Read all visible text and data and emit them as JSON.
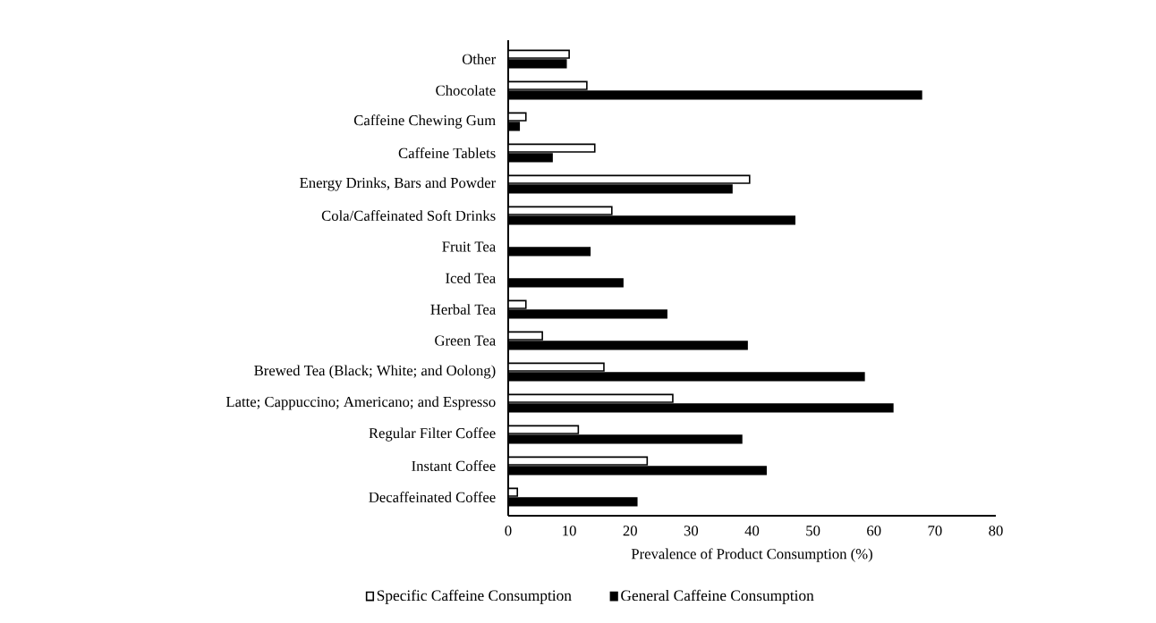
{
  "chart_data": {
    "type": "bar",
    "orientation": "horizontal",
    "xlabel": "Prevalence  of Product Consumption  (%)",
    "categories": [
      "Other",
      "Chocolate",
      "Caffeine Chewing Gum",
      "Caffeine Tablets",
      "Energy Drinks, Bars and Powder",
      "Cola/Caffeinated Soft Drinks",
      "Fruit Tea",
      "Iced Tea",
      "Herbal Tea",
      "Green Tea",
      "Brewed Tea (Black; White; and Oolong)",
      "Latte; Cappuccino; Americano; and Espresso",
      "Regular Filter Coffee",
      "Instant Coffee",
      "Decaffeinated Coffee"
    ],
    "series": [
      {
        "name": "Specific Caffeine Consumption",
        "color": "#ffffff",
        "values": [
          10.0,
          12.9,
          2.9,
          14.2,
          39.6,
          17.0,
          null,
          null,
          2.9,
          5.6,
          15.7,
          27.0,
          11.5,
          22.8,
          1.5
        ]
      },
      {
        "name": "General Caffeine Consumption",
        "color": "#000000",
        "values": [
          9.5,
          67.8,
          1.8,
          7.2,
          36.7,
          47.0,
          13.4,
          18.8,
          26.0,
          39.2,
          58.4,
          63.1,
          38.3,
          42.3,
          21.1
        ]
      }
    ],
    "xlim": [
      0,
      80
    ],
    "xticks": [
      0,
      10,
      20,
      30,
      40,
      50,
      60,
      70,
      80
    ],
    "grid": false,
    "legend": "bottom"
  }
}
